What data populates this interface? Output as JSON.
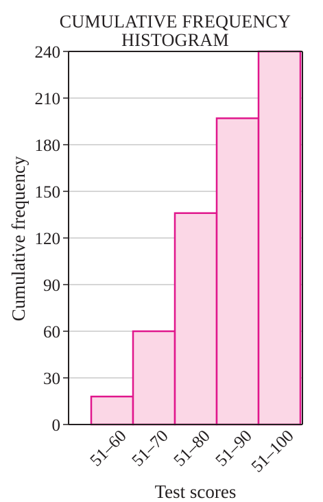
{
  "chart_data": {
    "type": "bar",
    "title_lines": [
      "CUMULATIVE FREQUENCY",
      "HISTOGRAM"
    ],
    "xlabel": "Test scores",
    "ylabel": "Cumulative frequency",
    "categories": [
      "51–60",
      "51–70",
      "51–80",
      "51–90",
      "51–100"
    ],
    "values": [
      18,
      60,
      136,
      197,
      240
    ],
    "ylim": [
      0,
      240
    ],
    "yticks": [
      0,
      30,
      60,
      90,
      120,
      150,
      180,
      210,
      240
    ],
    "grid": true,
    "colors": {
      "bar_fill": "#fbd7e6",
      "bar_stroke": "#e0168c",
      "grid": "#c8c8c8",
      "axis": "#231f20"
    }
  }
}
